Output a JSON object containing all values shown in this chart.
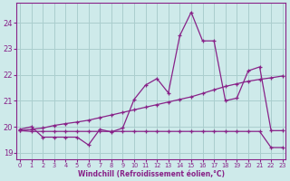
{
  "xlabel": "Windchill (Refroidissement éolien,°C)",
  "background_color": "#ceeaea",
  "grid_color": "#aacece",
  "line_color": "#882288",
  "yticks": [
    19,
    20,
    21,
    22,
    23,
    24
  ],
  "xticks": [
    0,
    1,
    2,
    3,
    4,
    5,
    6,
    7,
    8,
    9,
    10,
    11,
    12,
    13,
    14,
    15,
    16,
    17,
    18,
    19,
    20,
    21,
    22,
    23
  ],
  "line1_x": [
    0,
    1,
    2,
    3,
    4,
    5,
    6,
    7,
    8,
    9,
    10,
    11,
    12,
    13,
    14,
    15,
    16,
    17,
    18,
    19,
    20,
    21,
    22,
    23
  ],
  "line1_y": [
    19.9,
    20.0,
    19.6,
    19.6,
    19.6,
    19.6,
    19.3,
    19.9,
    19.8,
    19.95,
    21.05,
    21.6,
    21.85,
    21.3,
    23.5,
    24.4,
    23.3,
    23.3,
    21.0,
    21.1,
    22.15,
    22.3,
    19.85,
    19.85
  ],
  "line2_x": [
    0,
    1,
    2,
    3,
    4,
    5,
    6,
    7,
    8,
    9,
    10,
    11,
    12,
    13,
    14,
    15,
    16,
    17,
    18,
    19,
    20,
    21,
    22,
    23
  ],
  "line2_y": [
    19.85,
    19.9,
    19.95,
    20.05,
    20.12,
    20.18,
    20.25,
    20.35,
    20.45,
    20.55,
    20.65,
    20.75,
    20.85,
    20.95,
    21.05,
    21.15,
    21.28,
    21.42,
    21.55,
    21.65,
    21.75,
    21.82,
    21.88,
    21.95
  ],
  "line3_x": [
    0,
    1,
    2,
    3,
    4,
    5,
    6,
    7,
    8,
    9,
    10,
    11,
    12,
    13,
    14,
    15,
    16,
    17,
    18,
    19,
    20,
    21,
    22,
    23
  ],
  "line3_y": [
    19.85,
    19.82,
    19.82,
    19.82,
    19.82,
    19.82,
    19.82,
    19.82,
    19.82,
    19.82,
    19.82,
    19.82,
    19.82,
    19.82,
    19.82,
    19.82,
    19.82,
    19.82,
    19.82,
    19.82,
    19.82,
    19.82,
    19.2,
    19.2
  ]
}
